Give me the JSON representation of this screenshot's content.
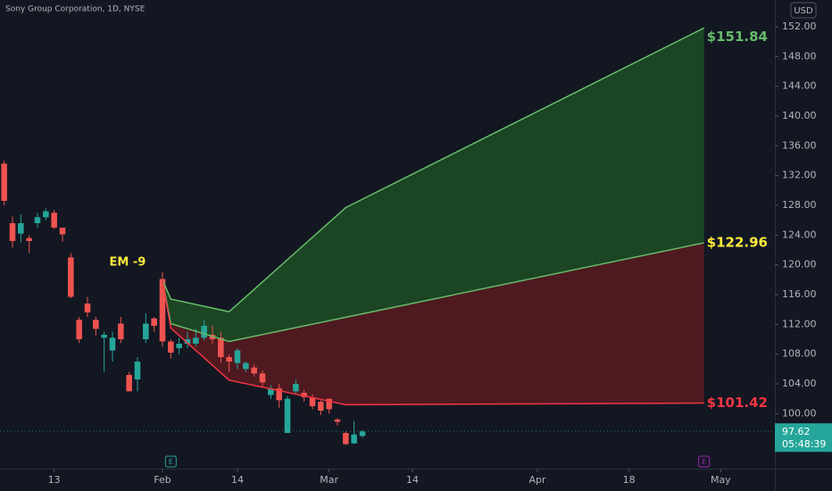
{
  "chart_data": {
    "type": "candlestick",
    "title": "Sony Group Corporation, 1D, NYSE",
    "currency": "USD",
    "up_color": "#26a69a",
    "down_color": "#ef5350",
    "x": [
      0,
      1,
      2,
      3,
      4,
      5,
      6,
      7,
      8,
      9,
      10,
      11,
      12,
      13,
      14,
      15,
      16,
      17,
      18,
      19,
      20,
      21,
      22,
      23,
      24,
      25,
      26,
      27,
      28,
      29,
      30,
      31,
      32,
      33,
      34,
      35,
      36,
      37,
      38,
      39,
      40,
      41,
      42,
      43
    ],
    "open": [
      133.6,
      125.6,
      124.2,
      123.6,
      125.6,
      126.4,
      127,
      125,
      121,
      112.6,
      114.8,
      112.6,
      110.2,
      108.5,
      112.1,
      105.2,
      104.6,
      110,
      112.8,
      118.1,
      109.7,
      108.8,
      109.4,
      109.4,
      110.2,
      110.6,
      110.2,
      107.6,
      106.8,
      106,
      106.2,
      105.4,
      102.5,
      103.4,
      97.4,
      103,
      102.8,
      102.2,
      101.6,
      102,
      99.2,
      97.4,
      96,
      97
    ],
    "high": [
      134,
      126.5,
      126.8,
      124,
      127,
      127.6,
      127.4,
      125,
      121.6,
      113,
      115.7,
      113,
      111,
      111,
      113,
      105.6,
      107.6,
      113.5,
      113,
      119,
      110,
      110.2,
      111,
      111.4,
      112.6,
      111.8,
      111,
      108,
      108.8,
      107,
      106.6,
      105.8,
      103.8,
      104,
      102.4,
      104.6,
      103.2,
      102.6,
      101.8,
      102,
      99.4,
      97.6,
      99,
      97.8
    ],
    "low": [
      128,
      122.3,
      123,
      121.6,
      125,
      126,
      124.8,
      123.1,
      115.5,
      109.5,
      113,
      110.5,
      105.6,
      107,
      109.5,
      103,
      103,
      109.5,
      111,
      109,
      107.4,
      108,
      108.8,
      109,
      109.8,
      109.4,
      106.8,
      105.6,
      106,
      105.6,
      105,
      103.6,
      102,
      100.8,
      97.4,
      102.6,
      101.6,
      100.6,
      99.8,
      100,
      98.4,
      95.8,
      95.9,
      96.8
    ],
    "close": [
      128.6,
      123.2,
      125.6,
      123.2,
      126.4,
      127.2,
      125,
      124.1,
      115.7,
      110,
      113.6,
      111.4,
      110.6,
      110.2,
      110,
      103,
      107,
      112.1,
      111.8,
      109.7,
      108.2,
      109.4,
      110,
      110.2,
      111.8,
      110,
      107.6,
      107,
      108.5,
      106.8,
      105.4,
      104.2,
      103.4,
      101.8,
      102,
      104,
      102.2,
      101,
      100.4,
      100.6,
      98.9,
      95.9,
      97.2,
      97.6
    ],
    "projections": [
      {
        "color": "#66bb6a",
        "label_color": "#66bb6a",
        "x": [
          19,
          20,
          27,
          41,
          84
        ],
        "values": [
          118,
          115.4,
          113.7,
          127.7,
          151.84
        ],
        "end_label": "$151.84"
      },
      {
        "color": "#66bb6a",
        "label_color": "#ffeb3b",
        "x": [
          19,
          20,
          27,
          84
        ],
        "values": [
          118,
          112.1,
          109.7,
          122.96
        ],
        "end_label": "$122.96"
      },
      {
        "color": "#f23645",
        "label_color": "#f23645",
        "x": [
          19,
          20,
          27,
          41,
          84
        ],
        "values": [
          118,
          111.5,
          104.5,
          101.2,
          101.42
        ],
        "end_label": "$101.42"
      }
    ],
    "band_fills": [
      "#1f4d24",
      "#5a1a20"
    ],
    "annotation": {
      "text": "EM -9",
      "x": 17,
      "y": 120.3
    },
    "last_price": 97.62,
    "countdown": "05:48:39",
    "events": [
      {
        "label": "E",
        "x": 20,
        "color": "#26a69a"
      },
      {
        "label": "E",
        "x": 84,
        "color": "#9c27b0"
      }
    ],
    "xlim": [
      -0.5,
      92.5
    ],
    "xticks": [
      {
        "value": 6,
        "label": "13"
      },
      {
        "value": 19,
        "label": "Feb"
      },
      {
        "value": 28,
        "label": "14"
      },
      {
        "value": 39,
        "label": "Mar"
      },
      {
        "value": 49,
        "label": "14"
      },
      {
        "value": 64,
        "label": "Apr"
      },
      {
        "value": 75,
        "label": "18"
      },
      {
        "value": 86,
        "label": "May"
      }
    ],
    "ylim": [
      93.2,
      155.6
    ],
    "yticks": [
      {
        "value": 100,
        "label": "100.00"
      },
      {
        "value": 104,
        "label": "104.00"
      },
      {
        "value": 108,
        "label": "108.00"
      },
      {
        "value": 112,
        "label": "112.00"
      },
      {
        "value": 116,
        "label": "116.00"
      },
      {
        "value": 120,
        "label": "120.00"
      },
      {
        "value": 124,
        "label": "124.00"
      },
      {
        "value": 128,
        "label": "128.00"
      },
      {
        "value": 132,
        "label": "132.00"
      },
      {
        "value": 136,
        "label": "136.00"
      },
      {
        "value": 140,
        "label": "140.00"
      },
      {
        "value": 144,
        "label": "144.00"
      },
      {
        "value": 148,
        "label": "148.00"
      },
      {
        "value": 152,
        "label": "152.00"
      }
    ]
  }
}
